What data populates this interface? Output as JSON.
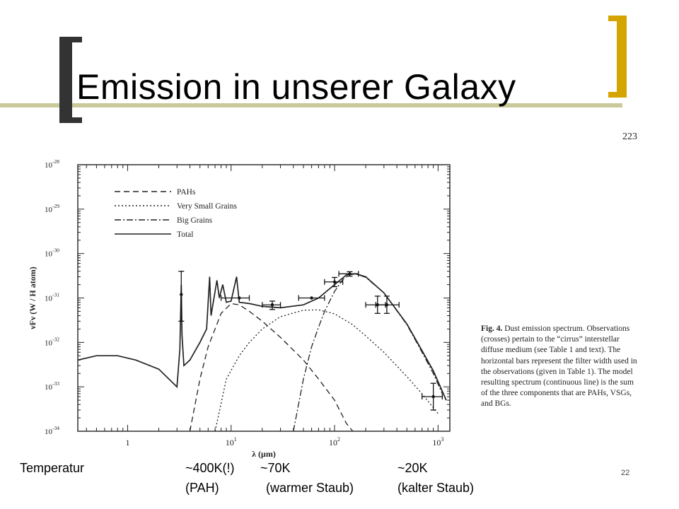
{
  "slide": {
    "title": "Emission in unserer Galaxy",
    "page_number_top": "223",
    "slide_number": "22"
  },
  "caption": {
    "fig_label": "Fig. 4.",
    "text": "Dust emission spectrum. Observations (crosses) pertain to the “cirrus” interstellar diffuse medium (see Table 1 and text). The horizontal bars represent the filter width used in the observations (given in Table 1). The model resulting spectrum (continuous line) is the sum of the three components that are PAHs, VSGs, and BGs."
  },
  "bottom": {
    "label": "Temperatur",
    "t1": "~400K(!)",
    "t1_sub": "(PAH)",
    "t2": "~70K",
    "t2_sub": "(warmer Staub)",
    "t3": "~20K",
    "t3_sub": "(kalter Staub)"
  },
  "chart_data": {
    "type": "line",
    "xlabel": "λ (μm)",
    "ylabel": "νFν (W / H atom)",
    "xscale": "log",
    "yscale": "log",
    "xlim": [
      0.33,
      1300
    ],
    "ylim": [
      1e-34,
      1e-28
    ],
    "x_ticks": [
      {
        "v": 1,
        "label": "1"
      },
      {
        "v": 10,
        "label": "10",
        "sup": "1"
      },
      {
        "v": 100,
        "label": "10",
        "sup": "2"
      },
      {
        "v": 1000,
        "label": "10",
        "sup": "3"
      }
    ],
    "y_ticks": [
      {
        "v": 1e-28,
        "label": "10",
        "sup": "-28"
      },
      {
        "v": 1e-29,
        "label": "10",
        "sup": "-29"
      },
      {
        "v": 1e-30,
        "label": "10",
        "sup": "-30"
      },
      {
        "v": 1e-31,
        "label": "10",
        "sup": "-31"
      },
      {
        "v": 1e-32,
        "label": "10",
        "sup": "-32"
      },
      {
        "v": 1e-33,
        "label": "10",
        "sup": "-33"
      },
      {
        "v": 1e-34,
        "label": "10",
        "sup": "-34"
      }
    ],
    "legend_position": "top-left",
    "series": [
      {
        "name": "PAHs",
        "dash": "8,5",
        "points": [
          [
            4,
            1e-34
          ],
          [
            5,
            1.5e-33
          ],
          [
            6,
            8e-33
          ],
          [
            8,
            4.5e-32
          ],
          [
            10,
            7.5e-32
          ],
          [
            12,
            7e-32
          ],
          [
            15,
            5e-32
          ],
          [
            20,
            3e-32
          ],
          [
            30,
            1.3e-32
          ],
          [
            50,
            4e-33
          ],
          [
            70,
            1.5e-33
          ],
          [
            100,
            5e-34
          ],
          [
            130,
            1.5e-34
          ],
          [
            150,
            1e-34
          ]
        ]
      },
      {
        "name": "Very Small Grains",
        "dash": "2,3",
        "points": [
          [
            7,
            1e-34
          ],
          [
            9,
            1.5e-33
          ],
          [
            12,
            5e-33
          ],
          [
            15,
            1e-32
          ],
          [
            20,
            2e-32
          ],
          [
            30,
            3.8e-32
          ],
          [
            50,
            5.3e-32
          ],
          [
            70,
            5.4e-32
          ],
          [
            100,
            4.4e-32
          ],
          [
            150,
            2.5e-32
          ],
          [
            200,
            1.4e-32
          ],
          [
            300,
            6e-33
          ],
          [
            500,
            1.7e-33
          ],
          [
            700,
            7e-34
          ],
          [
            1000,
            2.5e-34
          ]
        ]
      },
      {
        "name": "Big Grains",
        "dash": "9,3,2,3",
        "points": [
          [
            40,
            1e-34
          ],
          [
            50,
            1.5e-33
          ],
          [
            60,
            8e-33
          ],
          [
            70,
            2.2e-32
          ],
          [
            80,
            5e-32
          ],
          [
            100,
            1.4e-31
          ],
          [
            120,
            2.6e-31
          ],
          [
            140,
            3.4e-31
          ],
          [
            160,
            3.5e-31
          ],
          [
            200,
            2.9e-31
          ],
          [
            300,
            1.3e-31
          ],
          [
            500,
            2.5e-32
          ],
          [
            700,
            6e-33
          ],
          [
            900,
            2e-33
          ],
          [
            1100,
            7e-34
          ]
        ]
      },
      {
        "name": "Total",
        "dash": "",
        "points": [
          [
            0.33,
            4e-33
          ],
          [
            0.5,
            5e-33
          ],
          [
            0.8,
            5e-33
          ],
          [
            1.2,
            4e-33
          ],
          [
            2,
            2.5e-33
          ],
          [
            3,
            1e-33
          ],
          [
            3.2,
            7e-33
          ],
          [
            3.3,
            2e-31
          ],
          [
            3.35,
            1.5e-32
          ],
          [
            3.5,
            3e-33
          ],
          [
            4,
            4e-33
          ],
          [
            5,
            1e-32
          ],
          [
            5.8,
            2e-32
          ],
          [
            6.2,
            3e-31
          ],
          [
            6.4,
            4e-32
          ],
          [
            7.3,
            2.5e-31
          ],
          [
            7.7,
            1e-31
          ],
          [
            8.3,
            2e-31
          ],
          [
            9,
            8e-32
          ],
          [
            10,
            8.5e-32
          ],
          [
            11.3,
            3e-31
          ],
          [
            12,
            8e-32
          ],
          [
            15,
            7.5e-32
          ],
          [
            20,
            6.5e-32
          ],
          [
            30,
            6e-32
          ],
          [
            50,
            7e-32
          ],
          [
            70,
            1e-31
          ],
          [
            100,
            2e-31
          ],
          [
            130,
            3.3e-31
          ],
          [
            160,
            3.5e-31
          ],
          [
            200,
            3e-31
          ],
          [
            300,
            1.3e-31
          ],
          [
            500,
            2.6e-32
          ],
          [
            700,
            6.5e-33
          ],
          [
            900,
            2.3e-33
          ],
          [
            1200,
            5e-34
          ]
        ]
      }
    ],
    "observations": [
      {
        "x": 3.3,
        "y": 1.2e-31,
        "ylo": 3e-32,
        "yhi": 4e-31,
        "xlo": 3.3,
        "xhi": 3.3
      },
      {
        "x": 12,
        "y": 1e-31,
        "ylo": 1e-31,
        "yhi": 1e-31,
        "xlo": 8,
        "xhi": 15
      },
      {
        "x": 25,
        "y": 7e-32,
        "ylo": 5.5e-32,
        "yhi": 8.5e-32,
        "xlo": 20,
        "xhi": 30
      },
      {
        "x": 60,
        "y": 1e-31,
        "ylo": 1e-31,
        "yhi": 1e-31,
        "xlo": 45,
        "xhi": 80
      },
      {
        "x": 100,
        "y": 2.3e-31,
        "ylo": 1.8e-31,
        "yhi": 2.9e-31,
        "xlo": 80,
        "xhi": 120
      },
      {
        "x": 140,
        "y": 3.5e-31,
        "ylo": 3.1e-31,
        "yhi": 3.9e-31,
        "xlo": 110,
        "xhi": 170
      },
      {
        "x": 260,
        "y": 7e-32,
        "ylo": 4.5e-32,
        "yhi": 1.1e-31,
        "xlo": 200,
        "xhi": 310
      },
      {
        "x": 320,
        "y": 7e-32,
        "ylo": 4.5e-32,
        "yhi": 1.1e-31,
        "xlo": 250,
        "xhi": 420
      },
      {
        "x": 900,
        "y": 6e-34,
        "ylo": 3e-34,
        "yhi": 1.2e-33,
        "xlo": 700,
        "xhi": 1100
      }
    ]
  }
}
